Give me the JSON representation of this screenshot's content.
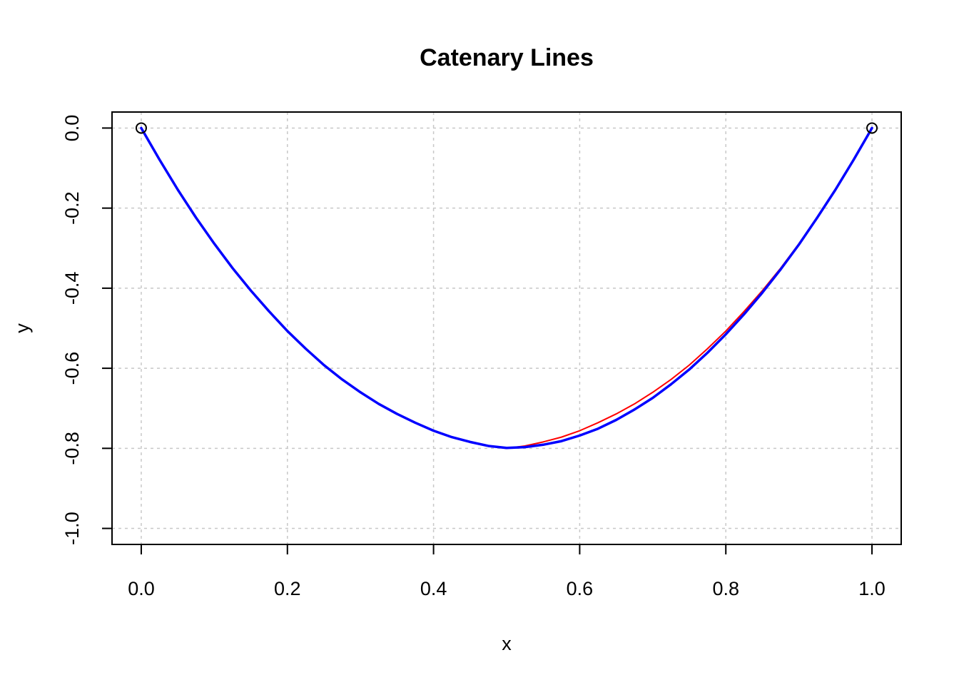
{
  "chart_data": {
    "type": "line",
    "title": "Catenary Lines",
    "xlabel": "x",
    "ylabel": "y",
    "xlim": [
      -0.04,
      1.04
    ],
    "ylim": [
      -1.04,
      0.04
    ],
    "xticks": [
      0.0,
      0.2,
      0.4,
      0.6,
      0.8,
      1.0
    ],
    "xtick_labels": [
      "0.0",
      "0.2",
      "0.4",
      "0.6",
      "0.8",
      "1.0"
    ],
    "yticks": [
      0.0,
      -0.2,
      -0.4,
      -0.6,
      -0.8,
      -1.0
    ],
    "ytick_labels": [
      "0.0",
      "-0.2",
      "-0.4",
      "-0.6",
      "-0.8",
      "-1.0"
    ],
    "grid": true,
    "endpoints": {
      "x": [
        0.0,
        1.0
      ],
      "y": [
        0.0,
        0.0
      ],
      "marker": "open-circle",
      "color": "#000000"
    },
    "series": [
      {
        "color": "#ff0000",
        "x": [
          0.0,
          0.025,
          0.05,
          0.075,
          0.1,
          0.125,
          0.15,
          0.175,
          0.2,
          0.225,
          0.25,
          0.275,
          0.3,
          0.325,
          0.35,
          0.375,
          0.4,
          0.425,
          0.45,
          0.475,
          0.5,
          0.525,
          0.55,
          0.575,
          0.6,
          0.625,
          0.65,
          0.675,
          0.7,
          0.725,
          0.75,
          0.775,
          0.8,
          0.825,
          0.85,
          0.875,
          0.9,
          0.925,
          0.95,
          0.975,
          1.0
        ],
        "y": [
          0.0,
          -0.079,
          -0.154,
          -0.224,
          -0.289,
          -0.35,
          -0.406,
          -0.458,
          -0.507,
          -0.551,
          -0.592,
          -0.628,
          -0.66,
          -0.689,
          -0.714,
          -0.736,
          -0.756,
          -0.772,
          -0.784,
          -0.794,
          -0.8,
          -0.794,
          -0.784,
          -0.772,
          -0.756,
          -0.736,
          -0.714,
          -0.689,
          -0.66,
          -0.628,
          -0.592,
          -0.551,
          -0.507,
          -0.458,
          -0.406,
          -0.35,
          -0.289,
          -0.224,
          -0.154,
          -0.079,
          0.0
        ]
      },
      {
        "color": "#0000ff",
        "x": [
          0.0,
          0.025,
          0.05,
          0.075,
          0.1,
          0.125,
          0.15,
          0.175,
          0.2,
          0.225,
          0.25,
          0.275,
          0.3,
          0.325,
          0.35,
          0.375,
          0.4,
          0.425,
          0.45,
          0.475,
          0.5,
          0.525,
          0.55,
          0.575,
          0.6,
          0.625,
          0.65,
          0.675,
          0.7,
          0.725,
          0.75,
          0.775,
          0.8,
          0.825,
          0.85,
          0.875,
          0.9,
          0.925,
          0.95,
          0.975,
          1.0
        ],
        "y": [
          0.0,
          -0.079,
          -0.154,
          -0.224,
          -0.289,
          -0.35,
          -0.406,
          -0.458,
          -0.507,
          -0.551,
          -0.592,
          -0.628,
          -0.66,
          -0.689,
          -0.714,
          -0.736,
          -0.756,
          -0.772,
          -0.784,
          -0.794,
          -0.799,
          -0.797,
          -0.791,
          -0.782,
          -0.768,
          -0.751,
          -0.729,
          -0.703,
          -0.674,
          -0.64,
          -0.603,
          -0.561,
          -0.515,
          -0.465,
          -0.411,
          -0.353,
          -0.291,
          -0.224,
          -0.154,
          -0.079,
          0.0
        ]
      }
    ]
  }
}
